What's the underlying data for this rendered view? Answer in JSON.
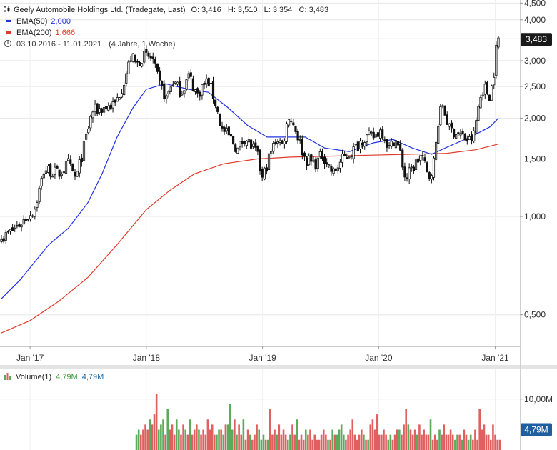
{
  "header": {
    "series_icon": "candlestick-icon",
    "title": "Geely Automobile Holdings Ltd. (Tradegate, Last)",
    "ohlc": "O: 3,416   H: 3,510   L: 3,354   C: 3,483",
    "ema50_label": "EMA(50)",
    "ema50_value": "2,000",
    "ema200_label": "EMA(200)",
    "ema200_value": "1,666",
    "clock_icon": "clock-icon",
    "date_range": "03.10.2016 - 11.01.2021",
    "period": "(4 Jahre, 1 Woche)"
  },
  "volume_header": {
    "icon": "volume-bars-icon",
    "label": "Volume(1)",
    "value1": "4,79M",
    "value2": "4,79M"
  },
  "last_price_badge": "3,483",
  "volume_badge": "4,79M",
  "colors": {
    "ema50": "#2233dd",
    "ema200": "#e03a2a",
    "candle": "#111111",
    "volume_up": "#5cab5c",
    "volume_down": "#e06060",
    "badge": "#1a1a1a",
    "volume_badge": "#1f5fa0",
    "grid": "#e6e6e6"
  },
  "chart_data": {
    "type": "candlestick",
    "scale": "log",
    "ylim": [
      0.4,
      4.6
    ],
    "y_ticks": [
      {
        "value": 4.5,
        "label": "4,500"
      },
      {
        "value": 4.0,
        "label": "4,000"
      },
      {
        "value": 3.5,
        "label": "3,500"
      },
      {
        "value": 3.0,
        "label": "3,000"
      },
      {
        "value": 2.5,
        "label": "2,500"
      },
      {
        "value": 2.0,
        "label": "2,000"
      },
      {
        "value": 1.5,
        "label": "1,500"
      },
      {
        "value": 1.0,
        "label": "1,000"
      },
      {
        "value": 0.5,
        "label": "0,500"
      }
    ],
    "x_range": [
      "2016-10-03",
      "2021-01-11"
    ],
    "x_ticks": [
      {
        "date": "2017-01-01",
        "label": "Jan '17"
      },
      {
        "date": "2018-01-01",
        "label": "Jan '18"
      },
      {
        "date": "2019-01-01",
        "label": "Jan '19"
      },
      {
        "date": "2020-01-01",
        "label": "Jan '20"
      },
      {
        "date": "2021-01-01",
        "label": "Jan '21"
      }
    ],
    "price_points": [
      [
        "2016-10-03",
        0.85
      ],
      [
        "2016-12-01",
        0.95
      ],
      [
        "2017-01-15",
        1.05
      ],
      [
        "2017-02-15",
        1.4
      ],
      [
        "2017-04-01",
        1.35
      ],
      [
        "2017-05-01",
        1.45
      ],
      [
        "2017-05-25",
        1.3
      ],
      [
        "2017-06-20",
        1.65
      ],
      [
        "2017-07-15",
        2.1
      ],
      [
        "2017-08-20",
        2.15
      ],
      [
        "2017-09-25",
        2.2
      ],
      [
        "2017-10-20",
        2.55
      ],
      [
        "2017-11-15",
        3.1
      ],
      [
        "2017-12-01",
        2.9
      ],
      [
        "2017-12-20",
        3.1
      ],
      [
        "2018-01-20",
        3.05
      ],
      [
        "2018-02-10",
        2.55
      ],
      [
        "2018-03-05",
        2.3
      ],
      [
        "2018-03-25",
        2.6
      ],
      [
        "2018-04-20",
        2.4
      ],
      [
        "2018-05-15",
        2.7
      ],
      [
        "2018-06-10",
        2.35
      ],
      [
        "2018-06-25",
        2.5
      ],
      [
        "2018-07-15",
        2.6
      ],
      [
        "2018-08-05",
        2.25
      ],
      [
        "2018-08-25",
        1.85
      ],
      [
        "2018-09-20",
        1.75
      ],
      [
        "2018-10-15",
        1.6
      ],
      [
        "2018-11-05",
        1.75
      ],
      [
        "2018-11-25",
        1.65
      ],
      [
        "2018-12-15",
        1.55
      ],
      [
        "2018-12-31",
        1.3
      ],
      [
        "2019-01-20",
        1.5
      ],
      [
        "2019-02-15",
        1.75
      ],
      [
        "2019-03-05",
        1.65
      ],
      [
        "2019-03-25",
        2.05
      ],
      [
        "2019-04-15",
        1.85
      ],
      [
        "2019-05-15",
        1.5
      ],
      [
        "2019-06-15",
        1.45
      ],
      [
        "2019-07-10",
        1.55
      ],
      [
        "2019-08-10",
        1.35
      ],
      [
        "2019-09-10",
        1.5
      ],
      [
        "2019-10-15",
        1.6
      ],
      [
        "2019-11-15",
        1.75
      ],
      [
        "2019-12-15",
        1.75
      ],
      [
        "2020-01-10",
        1.85
      ],
      [
        "2020-02-05",
        1.6
      ],
      [
        "2020-02-20",
        1.75
      ],
      [
        "2020-03-10",
        1.55
      ],
      [
        "2020-03-25",
        1.3
      ],
      [
        "2020-04-15",
        1.4
      ],
      [
        "2020-05-15",
        1.55
      ],
      [
        "2020-06-05",
        1.3
      ],
      [
        "2020-06-25",
        1.5
      ],
      [
        "2020-07-05",
        1.95
      ],
      [
        "2020-07-20",
        2.2
      ],
      [
        "2020-08-10",
        1.85
      ],
      [
        "2020-09-05",
        1.8
      ],
      [
        "2020-10-10",
        1.7
      ],
      [
        "2020-10-25",
        1.75
      ],
      [
        "2020-11-10",
        2.2
      ],
      [
        "2020-11-25",
        2.5
      ],
      [
        "2020-12-15",
        2.35
      ],
      [
        "2020-12-25",
        2.6
      ],
      [
        "2021-01-04",
        3.25
      ],
      [
        "2021-01-11",
        3.483
      ]
    ],
    "ema50_points": [
      [
        "2016-10-03",
        0.56
      ],
      [
        "2016-12-01",
        0.64
      ],
      [
        "2017-03-01",
        0.82
      ],
      [
        "2017-05-01",
        0.92
      ],
      [
        "2017-07-01",
        1.1
      ],
      [
        "2017-08-15",
        1.35
      ],
      [
        "2017-10-01",
        1.75
      ],
      [
        "2017-11-20",
        2.15
      ],
      [
        "2018-01-01",
        2.45
      ],
      [
        "2018-03-01",
        2.55
      ],
      [
        "2018-05-15",
        2.45
      ],
      [
        "2018-07-15",
        2.4
      ],
      [
        "2018-09-15",
        2.15
      ],
      [
        "2018-11-15",
        1.9
      ],
      [
        "2019-01-15",
        1.75
      ],
      [
        "2019-03-15",
        1.75
      ],
      [
        "2019-05-15",
        1.75
      ],
      [
        "2019-07-15",
        1.62
      ],
      [
        "2019-10-01",
        1.58
      ],
      [
        "2019-12-15",
        1.68
      ],
      [
        "2020-02-15",
        1.72
      ],
      [
        "2020-04-15",
        1.62
      ],
      [
        "2020-06-15",
        1.55
      ],
      [
        "2020-08-15",
        1.65
      ],
      [
        "2020-10-15",
        1.75
      ],
      [
        "2020-12-15",
        1.88
      ],
      [
        "2021-01-11",
        2.0
      ]
    ],
    "ema200_points": [
      [
        "2016-10-03",
        0.44
      ],
      [
        "2017-01-01",
        0.48
      ],
      [
        "2017-04-01",
        0.55
      ],
      [
        "2017-07-01",
        0.65
      ],
      [
        "2017-10-01",
        0.82
      ],
      [
        "2018-01-01",
        1.05
      ],
      [
        "2018-03-15",
        1.2
      ],
      [
        "2018-06-01",
        1.35
      ],
      [
        "2018-09-01",
        1.45
      ],
      [
        "2018-12-15",
        1.5
      ],
      [
        "2019-04-01",
        1.52
      ],
      [
        "2019-08-01",
        1.53
      ],
      [
        "2019-12-01",
        1.54
      ],
      [
        "2020-04-01",
        1.55
      ],
      [
        "2020-08-01",
        1.56
      ],
      [
        "2020-11-01",
        1.6
      ],
      [
        "2021-01-11",
        1.666
      ]
    ],
    "volume": {
      "ylim": [
        0,
        16
      ],
      "y_ticks": [
        {
          "value": 10,
          "label": "10,00M"
        }
      ],
      "start": "2017-12-01",
      "step_days": 7,
      "values": [
        3,
        4,
        3,
        4,
        5,
        4,
        6,
        5,
        7,
        11,
        4,
        5,
        6,
        3,
        8,
        4,
        5,
        3,
        6,
        4,
        3,
        5,
        4,
        3,
        6,
        3,
        4,
        5,
        4,
        3,
        4,
        3,
        6,
        4,
        5,
        3,
        3,
        4,
        4,
        3,
        5,
        5,
        9,
        4,
        6,
        3,
        5,
        3,
        6,
        2,
        4,
        3,
        2,
        3,
        5,
        4,
        2,
        3,
        2,
        2,
        8,
        3,
        4,
        3,
        5,
        3,
        4,
        3,
        2,
        3,
        5,
        3,
        6,
        2,
        3,
        2,
        4,
        3,
        4,
        2,
        3,
        2,
        2,
        3,
        4,
        3,
        2,
        2,
        4,
        3,
        3,
        4,
        5,
        3,
        2,
        3,
        4,
        6,
        3,
        2,
        3,
        4,
        3,
        2,
        2,
        5,
        6,
        4,
        7,
        3,
        3,
        4,
        3,
        2,
        3,
        2,
        3,
        4,
        4,
        3,
        5,
        8,
        5,
        4,
        3,
        4,
        3,
        5,
        3,
        4,
        3,
        3,
        6,
        2,
        3,
        2,
        4,
        3,
        5,
        3,
        3,
        4,
        3,
        2,
        3,
        3,
        2,
        4,
        3,
        2,
        3,
        2,
        4,
        2,
        8,
        4,
        5,
        3,
        3,
        2,
        5,
        3,
        2,
        2,
        3,
        2,
        3,
        6,
        2,
        3,
        4,
        3,
        12,
        3,
        2,
        3,
        3,
        2,
        2,
        4,
        3,
        3,
        12,
        4
      ]
    }
  }
}
